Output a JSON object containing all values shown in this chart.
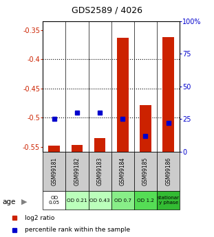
{
  "title": "GDS2589 / 4026",
  "samples": [
    "GSM99181",
    "GSM99182",
    "GSM99183",
    "GSM99184",
    "GSM99185",
    "GSM99186"
  ],
  "age_labels": [
    "OD\n0.05",
    "OD 0.21",
    "OD 0.43",
    "OD 0.7",
    "OD 1.2",
    "stationar\ny phase"
  ],
  "age_colors": [
    "#ffffff",
    "#bbffbb",
    "#bbffbb",
    "#88ee88",
    "#55dd55",
    "#33bb33"
  ],
  "log2_ratio": [
    -0.548,
    -0.546,
    -0.535,
    -0.363,
    -0.478,
    -0.362
  ],
  "percentile_rank": [
    25.0,
    30.0,
    30.0,
    25.0,
    12.0,
    22.0
  ],
  "ylim_left": [
    -0.558,
    -0.335
  ],
  "ylim_right": [
    0,
    100
  ],
  "yticks_left": [
    -0.55,
    -0.5,
    -0.45,
    -0.4,
    -0.35
  ],
  "yticks_right": [
    0,
    25,
    50,
    75,
    100
  ],
  "ytick_labels_left": [
    "-0.55",
    "-0.5",
    "-0.45",
    "-0.4",
    "-0.35"
  ],
  "ytick_labels_right": [
    "0",
    "25",
    "50",
    "75",
    "100%"
  ],
  "bar_color": "#cc2200",
  "dot_color": "#0000cc",
  "legend_red": "log2 ratio",
  "legend_blue": "percentile rank within the sample",
  "sample_box_color": "#cccccc",
  "left_label_color": "#cc2200",
  "right_label_color": "#0000cc",
  "bar_baseline": -0.558
}
